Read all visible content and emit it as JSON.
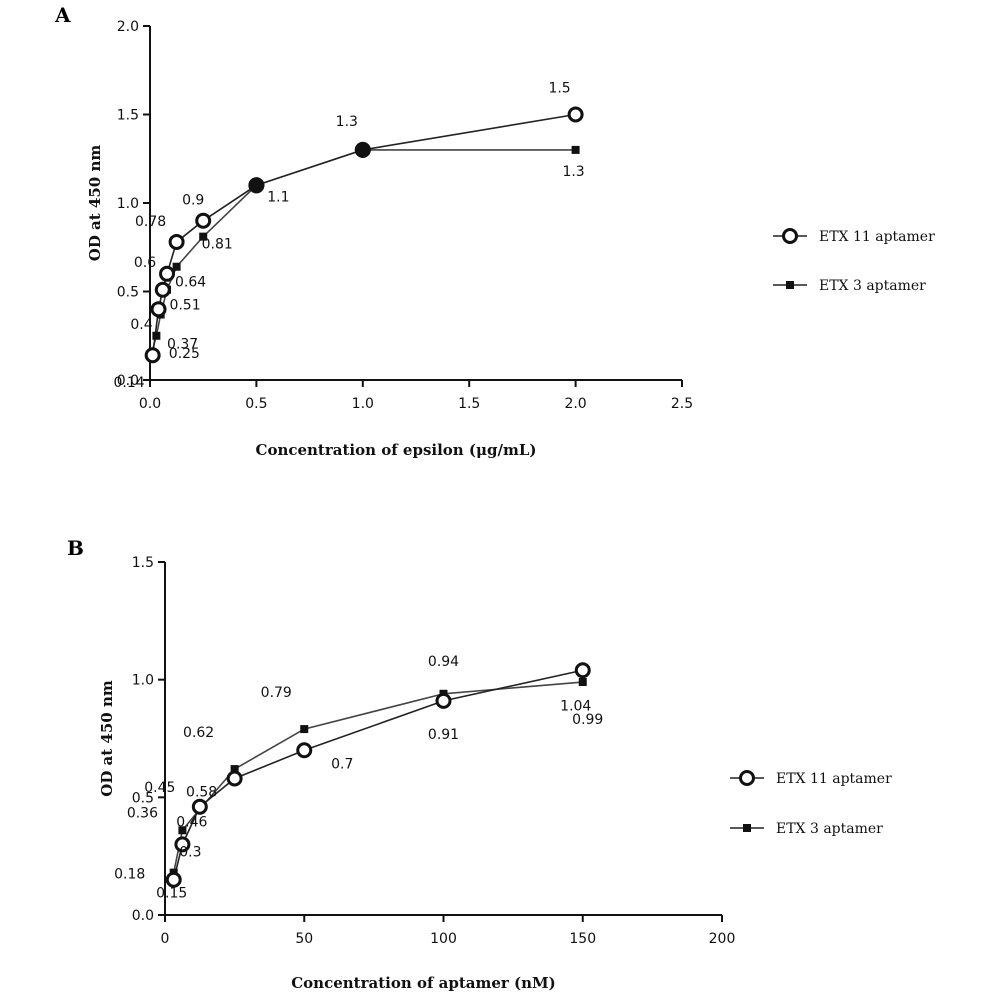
{
  "chart_data": [
    {
      "type": "line",
      "panel": "A",
      "xlabel": "Concentration of epsilon (μg/mL)",
      "ylabel": "OD at 450 nm",
      "xlim": [
        0,
        2.5
      ],
      "ylim": [
        0,
        2.0
      ],
      "x_ticks": [
        "0.0",
        "0.5",
        "1.0",
        "1.5",
        "2.0",
        "2.5"
      ],
      "y_ticks": [
        "0.0",
        "0.5",
        "1.0",
        "1.5",
        "2.0"
      ],
      "grid": false,
      "legend_position": "right",
      "series": [
        {
          "name": "ETX 11 aptamer",
          "marker": "open-circle",
          "points": [
            {
              "x": 0.0125,
              "y": 0.14,
              "label": ""
            },
            {
              "x": 0.04,
              "y": 0.4,
              "label": "0.4"
            },
            {
              "x": 0.06,
              "y": 0.51,
              "label": ""
            },
            {
              "x": 0.08,
              "y": 0.6,
              "label": "0.6"
            },
            {
              "x": 0.125,
              "y": 0.78,
              "label": "0.78"
            },
            {
              "x": 0.25,
              "y": 0.9,
              "label": "0.9"
            },
            {
              "x": 0.5,
              "y": 1.1,
              "label": ""
            },
            {
              "x": 1.0,
              "y": 1.3,
              "label": "1.3"
            },
            {
              "x": 2.0,
              "y": 1.5,
              "label": "1.5"
            }
          ]
        },
        {
          "name": "ETX 3 aptamer",
          "marker": "filled-square",
          "points": [
            {
              "x": 0.005,
              "y": 0.14,
              "label": "0.14"
            },
            {
              "x": 0.03,
              "y": 0.25,
              "label": "0.25"
            },
            {
              "x": 0.05,
              "y": 0.37,
              "label": "0.37"
            },
            {
              "x": 0.08,
              "y": 0.51,
              "label": "0.51"
            },
            {
              "x": 0.125,
              "y": 0.64,
              "label": "0.64"
            },
            {
              "x": 0.25,
              "y": 0.81,
              "label": "0.81"
            },
            {
              "x": 0.5,
              "y": 1.1,
              "label": "1.1"
            },
            {
              "x": 1.0,
              "y": 1.3,
              "label": ""
            },
            {
              "x": 2.0,
              "y": 1.3,
              "label": "1.3"
            }
          ]
        }
      ]
    },
    {
      "type": "line",
      "panel": "B",
      "xlabel": "Concentration of aptamer (nM)",
      "ylabel": "OD at 450 nm",
      "xlim": [
        0,
        200
      ],
      "ylim": [
        0,
        1.5
      ],
      "x_ticks": [
        "0",
        "50",
        "100",
        "150",
        "200"
      ],
      "y_ticks": [
        "0.0",
        "0.5",
        "1.0",
        "1.5"
      ],
      "grid": false,
      "legend_position": "right",
      "series": [
        {
          "name": "ETX 11 aptamer",
          "marker": "open-circle",
          "points": [
            {
              "x": 3.125,
              "y": 0.15,
              "label": "0.15"
            },
            {
              "x": 6.25,
              "y": 0.3,
              "label": "0.3"
            },
            {
              "x": 12.5,
              "y": 0.46,
              "label": "0.46"
            },
            {
              "x": 25,
              "y": 0.58,
              "label": "0.58"
            },
            {
              "x": 50,
              "y": 0.7,
              "label": "0.7"
            },
            {
              "x": 100,
              "y": 0.91,
              "label": "0.91"
            },
            {
              "x": 150,
              "y": 1.04,
              "label": "1.04"
            }
          ]
        },
        {
          "name": "ETX 3 aptamer",
          "marker": "filled-square",
          "points": [
            {
              "x": 3.125,
              "y": 0.18,
              "label": "0.18"
            },
            {
              "x": 6.25,
              "y": 0.36,
              "label": "0.36"
            },
            {
              "x": 12.5,
              "y": 0.45,
              "label": "0.45"
            },
            {
              "x": 25,
              "y": 0.62,
              "label": "0.62"
            },
            {
              "x": 50,
              "y": 0.79,
              "label": "0.79"
            },
            {
              "x": 100,
              "y": 0.94,
              "label": "0.94"
            },
            {
              "x": 150,
              "y": 0.99,
              "label": "0.99"
            }
          ]
        }
      ]
    }
  ]
}
